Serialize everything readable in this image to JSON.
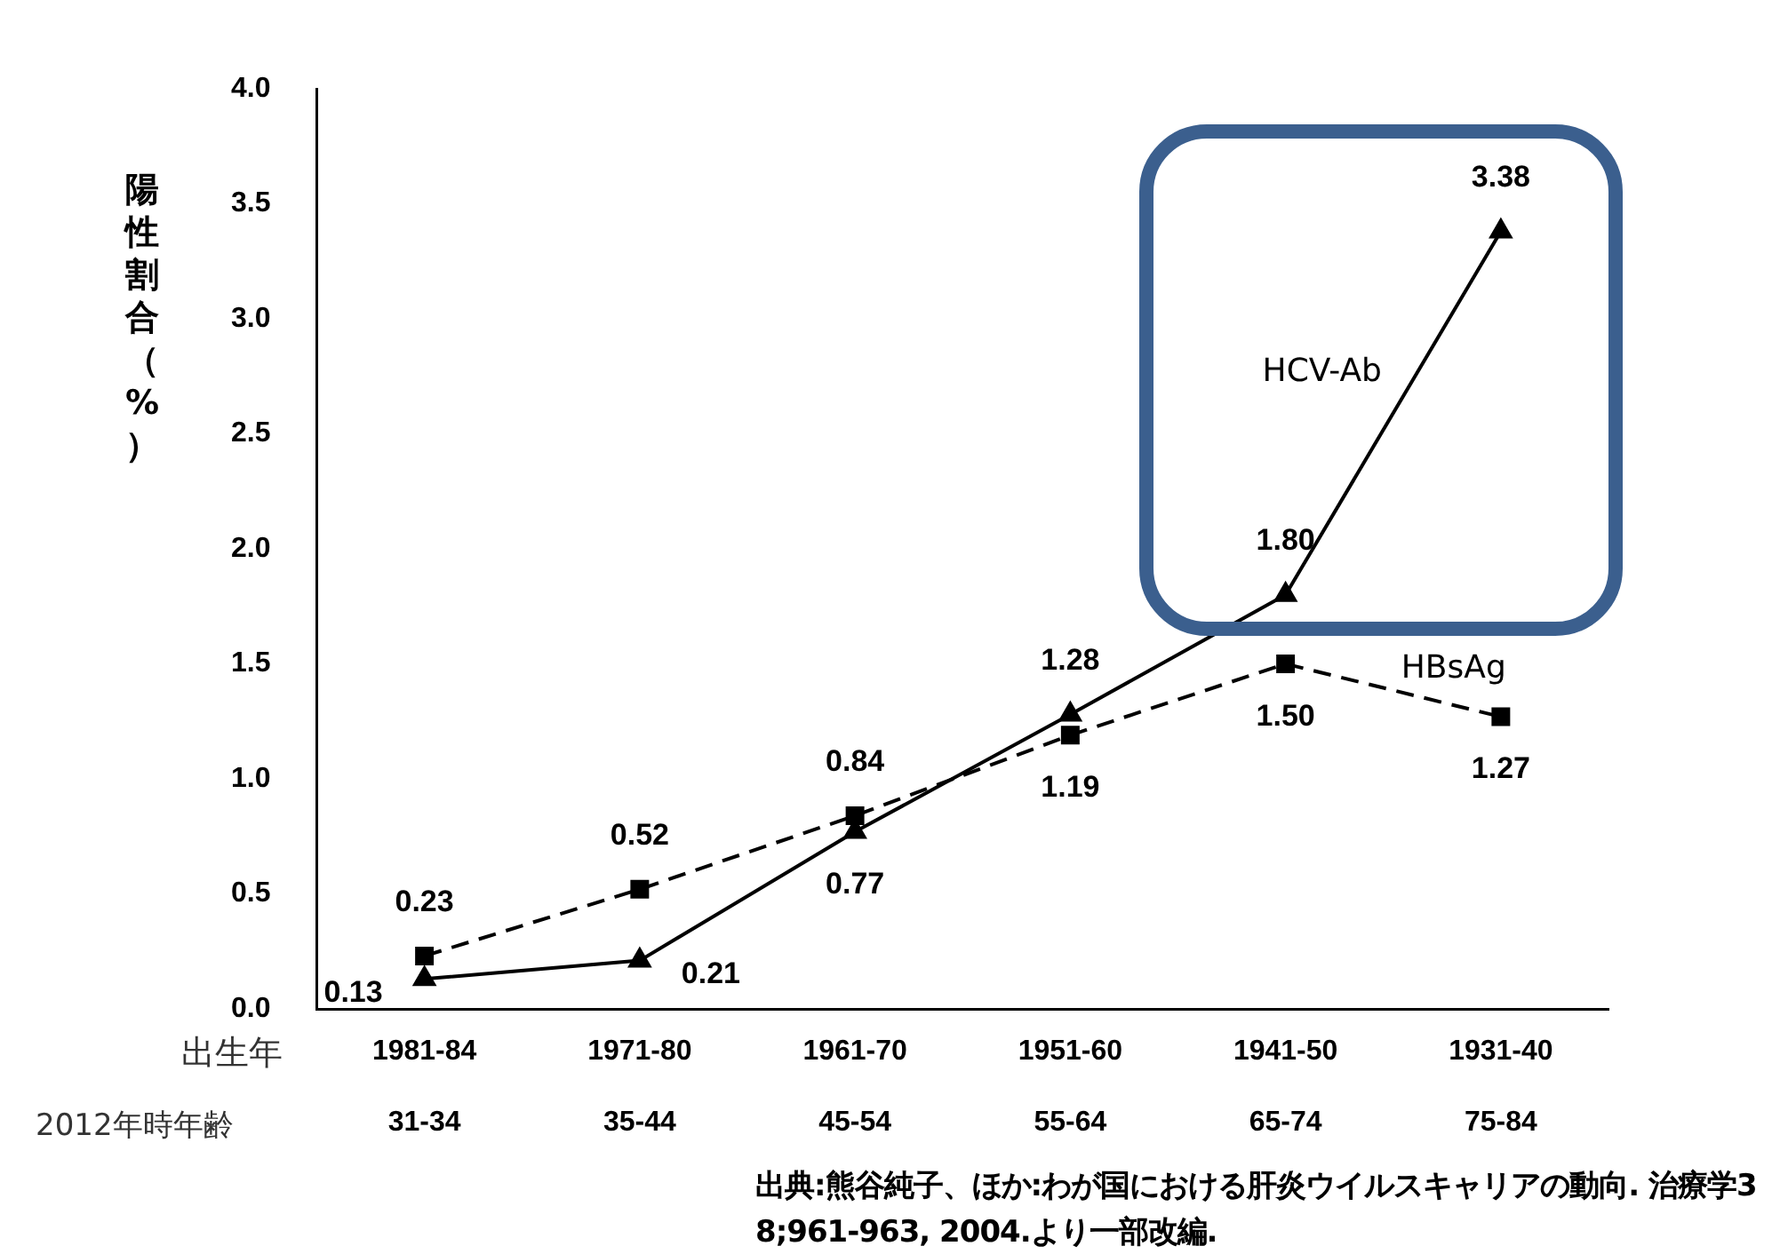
{
  "chart_data": {
    "type": "line",
    "categories": [
      "1981-84\n31-34",
      "1971-80\n35-44",
      "1961-70\n45-54",
      "1951-60\n55-64",
      "1941-50\n65-74",
      "1931-40\n75-84"
    ],
    "xlabel": "出生年",
    "ylabel": "陽性割合（%）",
    "ylim": [
      0,
      4
    ],
    "yticks": [
      {
        "value": 0,
        "label": "0.0"
      },
      {
        "value": 0.5,
        "label": "0.5"
      },
      {
        "value": 1,
        "label": "1.0"
      },
      {
        "value": 1.5,
        "label": "1.5"
      },
      {
        "value": 2,
        "label": "2.0"
      },
      {
        "value": 2.5,
        "label": "2.5"
      },
      {
        "value": 3,
        "label": "3.0"
      },
      {
        "value": 3.5,
        "label": "3.5"
      },
      {
        "value": 4,
        "label": "4.0"
      }
    ],
    "series": [
      {
        "name": "HCV-Ab",
        "color": "#000000",
        "marker": "triangle",
        "line_style": "solid",
        "values": [
          0.13,
          0.21,
          0.77,
          1.28,
          1.8,
          3.38
        ],
        "value_labels": [
          "0.13",
          "0.21",
          "0.77",
          "1.28",
          "1.80",
          "3.38"
        ]
      },
      {
        "name": "HBsAg",
        "color": "#000000",
        "marker": "square",
        "line_style": "dashed",
        "values": [
          0.23,
          0.52,
          0.84,
          1.19,
          1.5,
          1.27
        ],
        "value_labels": [
          "0.23",
          "0.52",
          "0.84",
          "1.19",
          "1.50",
          "1.27"
        ]
      }
    ],
    "annotations": [
      "2012年時年齢",
      "出典:熊谷純子、ほか:わが国における肝炎ウイルスキャリアの動向. 治療学38;961-963, 2004.より一部改編."
    ],
    "grid": false,
    "legend": false
  }
}
